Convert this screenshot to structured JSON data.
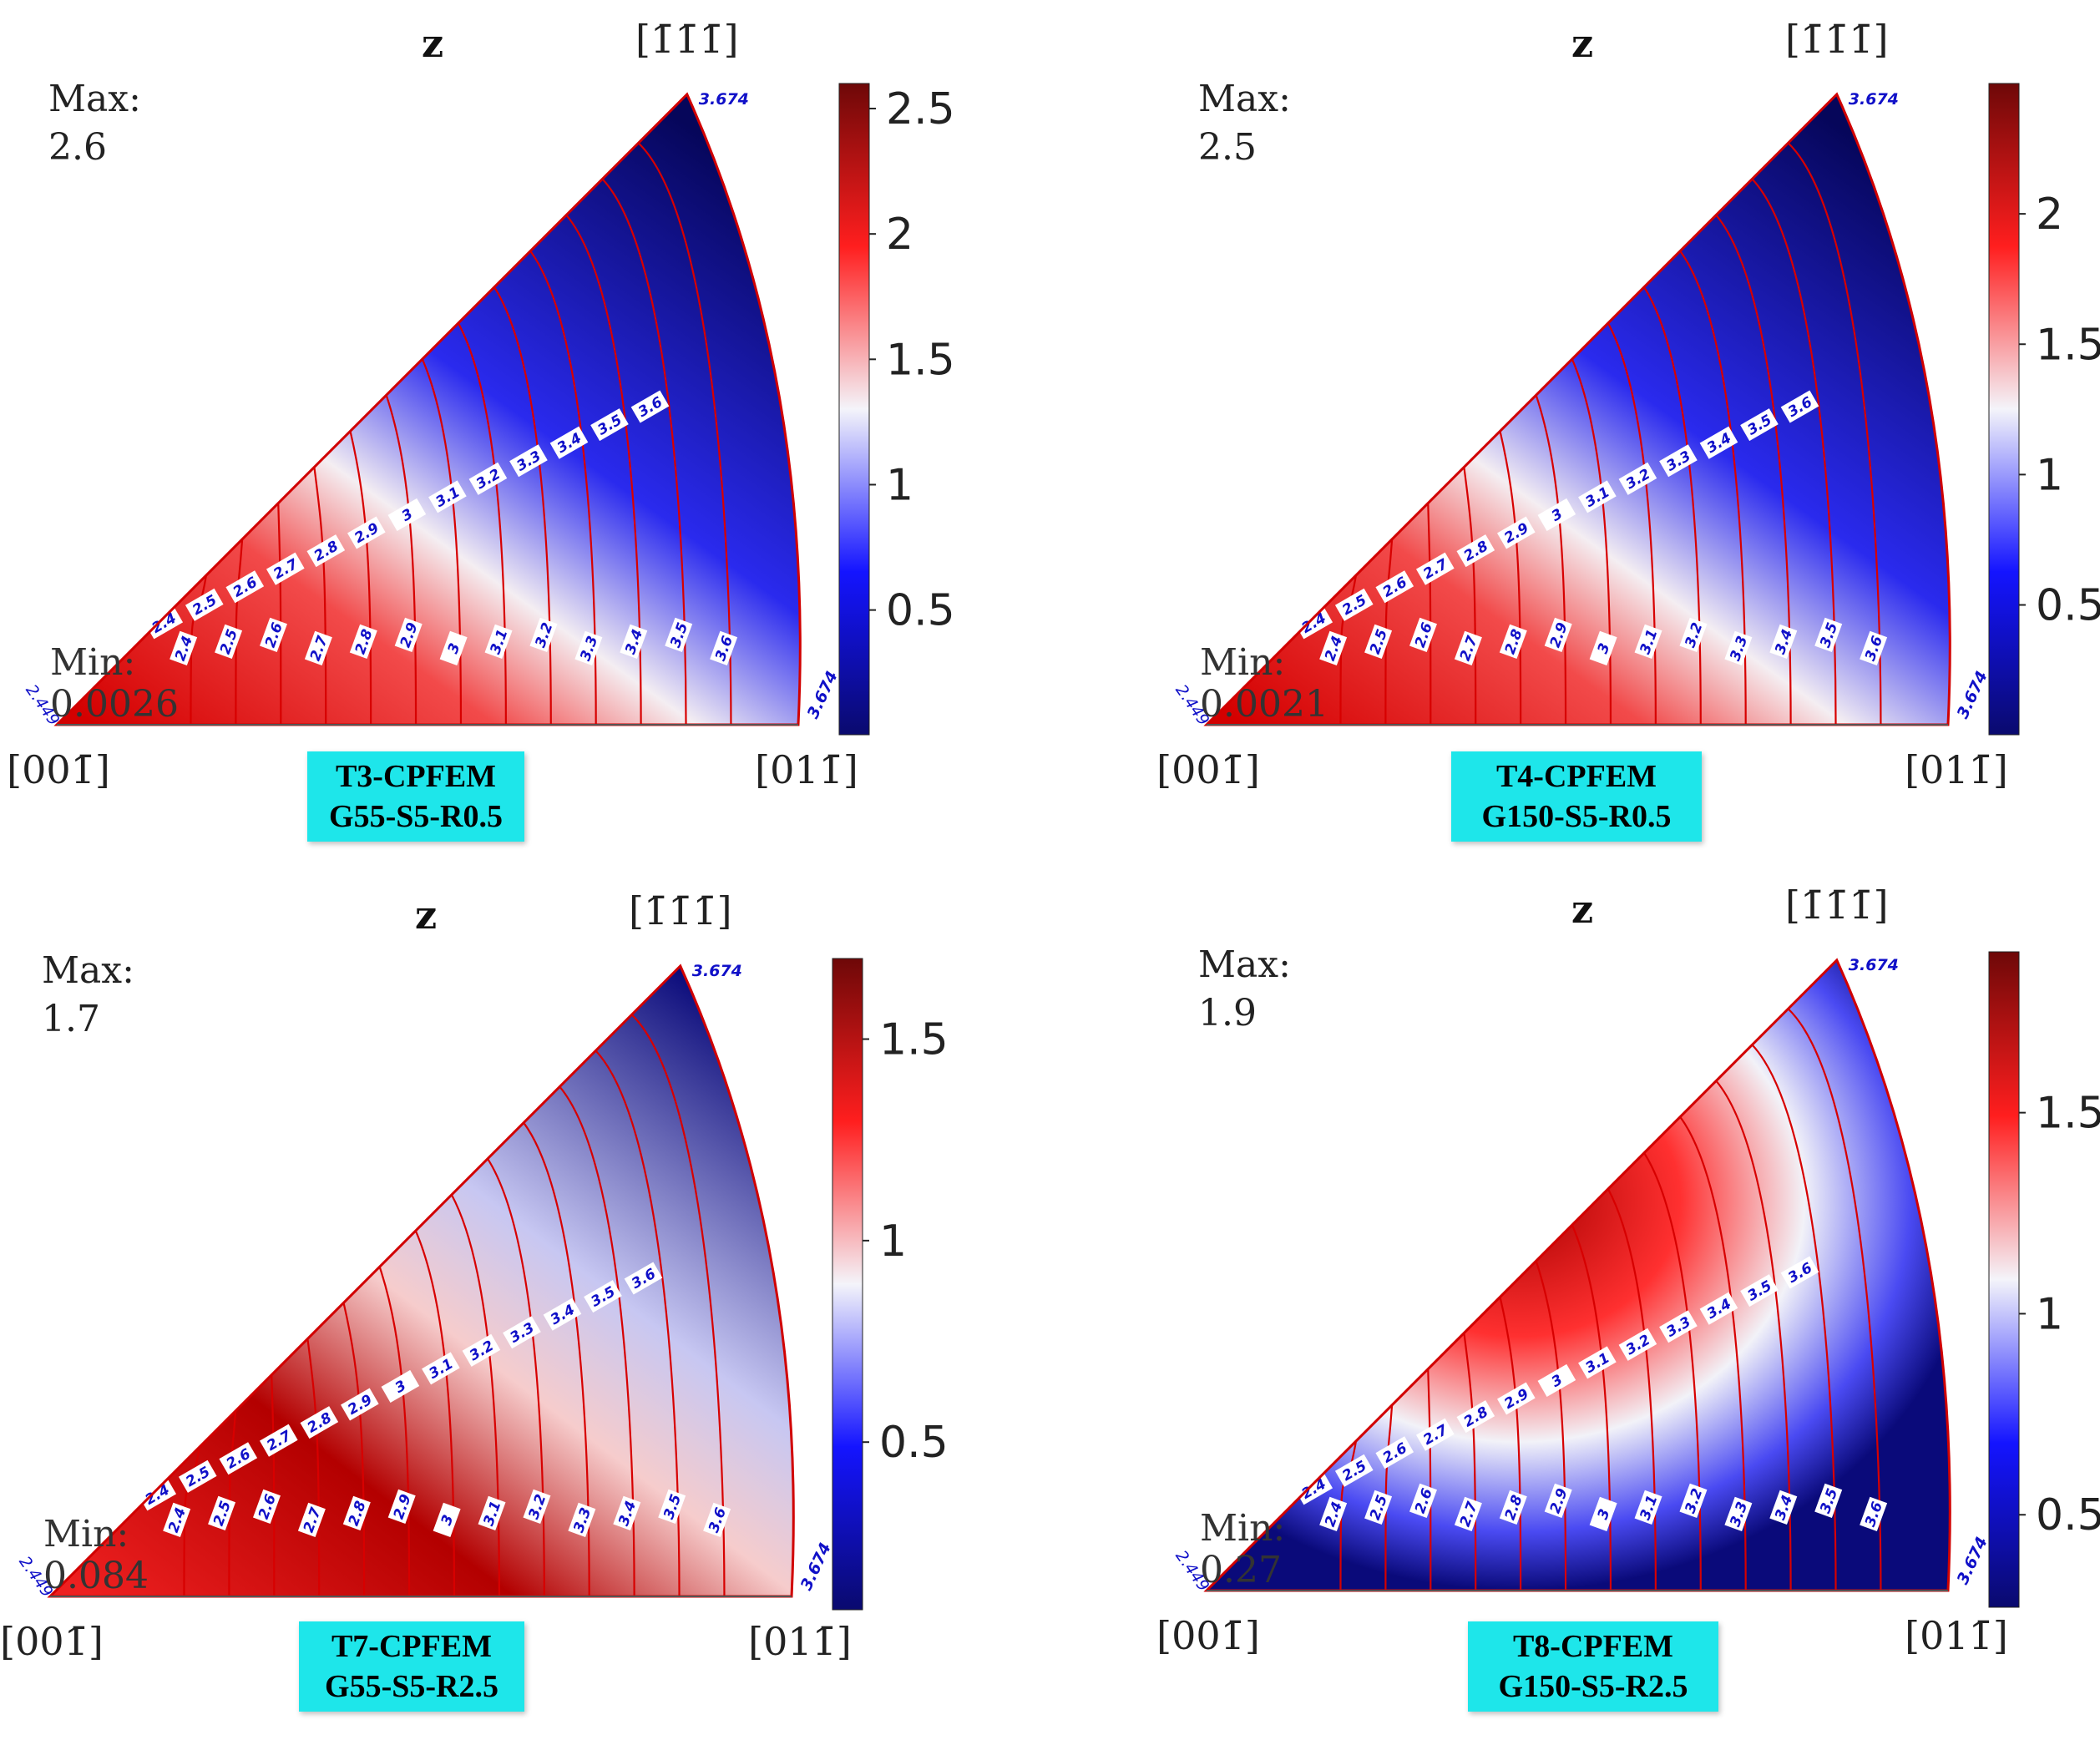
{
  "chart_data": [
    {
      "type": "heatmap",
      "subtype": "inverse-pole-figure-contour",
      "axis_label": "z",
      "corners": {
        "origin": "[001̄]",
        "right": "[011̄]",
        "top": "[1̄1̄1̄]"
      },
      "max_label": "Max:",
      "max_value": "2.6",
      "min_label": "Min:",
      "min_value": "0.0026",
      "colorbar": {
        "min": 0.0026,
        "max": 2.6,
        "ticks": [
          "0.5",
          "1",
          "1.5",
          "2",
          "2.5"
        ],
        "tick_values": [
          0.5,
          1,
          1.5,
          2,
          2.5
        ]
      },
      "pattern": "high-near-001",
      "contour_levels": [
        "2.4",
        "2.5",
        "2.6",
        "2.7",
        "2.8",
        "2.9",
        "3",
        "3.1",
        "3.2",
        "3.3",
        "3.4",
        "3.5",
        "3.6"
      ],
      "edge_labels": [
        "2.449",
        "3.674",
        "3.674"
      ],
      "label_line1": "T3-CPFEM",
      "label_line2": "G55-S5-R0.5"
    },
    {
      "type": "heatmap",
      "subtype": "inverse-pole-figure-contour",
      "axis_label": "z",
      "corners": {
        "origin": "[001̄]",
        "right": "[011̄]",
        "top": "[1̄1̄1̄]"
      },
      "max_label": "Max:",
      "max_value": "2.5",
      "min_label": "Min:",
      "min_value": "0.0021",
      "colorbar": {
        "min": 0.0021,
        "max": 2.5,
        "ticks": [
          "0.5",
          "1",
          "1.5",
          "2"
        ],
        "tick_values": [
          0.5,
          1,
          1.5,
          2
        ]
      },
      "pattern": "high-near-001",
      "contour_levels": [
        "2.4",
        "2.5",
        "2.6",
        "2.7",
        "2.8",
        "2.9",
        "3",
        "3.1",
        "3.2",
        "3.3",
        "3.4",
        "3.5",
        "3.6"
      ],
      "edge_labels": [
        "2.449",
        "3.674",
        "3.674"
      ],
      "label_line1": "T4-CPFEM",
      "label_line2": "G150-S5-R0.5"
    },
    {
      "type": "heatmap",
      "subtype": "inverse-pole-figure-contour",
      "axis_label": "z",
      "corners": {
        "origin": "[001̄]",
        "right": "[011̄]",
        "top": "[1̄1̄1̄]"
      },
      "max_label": "Max:",
      "max_value": "1.7",
      "min_label": "Min:",
      "min_value": "0.084",
      "colorbar": {
        "min": 0.084,
        "max": 1.7,
        "ticks": [
          "0.5",
          "1",
          "1.5"
        ],
        "tick_values": [
          0.5,
          1,
          1.5
        ]
      },
      "pattern": "high-in-middle-band",
      "contour_levels": [
        "2.4",
        "2.5",
        "2.6",
        "2.7",
        "2.8",
        "2.9",
        "3",
        "3.1",
        "3.2",
        "3.3",
        "3.4",
        "3.5",
        "3.6"
      ],
      "edge_labels": [
        "2.449",
        "3.674",
        "3.674"
      ],
      "label_line1": "T7-CPFEM",
      "label_line2": "G55-S5-R2.5"
    },
    {
      "type": "heatmap",
      "subtype": "inverse-pole-figure-contour",
      "axis_label": "z",
      "corners": {
        "origin": "[001̄]",
        "right": "[011̄]",
        "top": "[1̄1̄1̄]"
      },
      "max_label": "Max:",
      "max_value": "1.9",
      "min_label": "Min:",
      "min_value": "0.27",
      "colorbar": {
        "min": 0.27,
        "max": 1.9,
        "ticks": [
          "0.5",
          "1",
          "1.5"
        ],
        "tick_values": [
          0.5,
          1,
          1.5
        ]
      },
      "pattern": "high-in-middle-low-at-corners",
      "contour_levels": [
        "2.4",
        "2.5",
        "2.6",
        "2.7",
        "2.8",
        "2.9",
        "3",
        "3.1",
        "3.2",
        "3.3",
        "3.4",
        "3.5",
        "3.6"
      ],
      "edge_labels": [
        "2.449",
        "3.674",
        "3.674"
      ],
      "label_line1": "T8-CPFEM",
      "label_line2": "G150-S5-R2.5"
    }
  ]
}
